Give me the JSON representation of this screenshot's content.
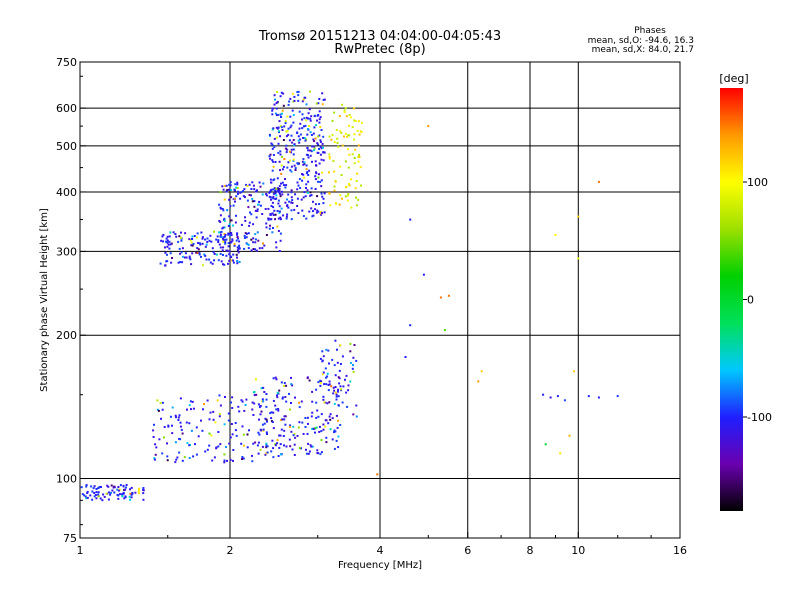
{
  "chart_data": {
    "type": "scatter",
    "title": "Tromsø 20151213 04:04:00-04:05:43",
    "subtitle": "RwPretec (8p)",
    "xlabel": "Frequency [MHz]",
    "ylabel": "Stationary phase Virtual Height [km]",
    "x_scale": "log",
    "y_scale": "log",
    "xlim": [
      1,
      16
    ],
    "ylim": [
      75,
      750
    ],
    "x_ticks": [
      1,
      2,
      4,
      6,
      8,
      10,
      16
    ],
    "x_tick_labels": [
      "1",
      "2",
      "4",
      "6",
      "8",
      "10",
      "16"
    ],
    "y_ticks": [
      75,
      100,
      200,
      300,
      400,
      500,
      600,
      750
    ],
    "y_tick_labels": [
      "75",
      "100",
      "200",
      "300",
      "400",
      "500",
      "600",
      "750"
    ],
    "grid": true,
    "legend": {
      "heading": "Phases",
      "lines": [
        "mean, sd,O: -94.6, 16.3",
        "mean, sd,X:  84.0, 21.7"
      ],
      "placement": "top-right"
    },
    "colorbar": {
      "label": "[deg]",
      "range": [
        -180,
        180
      ],
      "ticks": [
        100,
        0,
        -100
      ],
      "tick_labels": [
        "100",
        "0",
        "-100"
      ],
      "colormap": [
        "#000000",
        "#6a00b0",
        "#1f1fff",
        "#00c8ff",
        "#00e05a",
        "#00d000",
        "#9ee000",
        "#ffff00",
        "#ff9900",
        "#ff0000"
      ]
    },
    "series": [
      {
        "name": "O",
        "description_color": "#1f1fff",
        "clusters": [
          {
            "x_range": [
              1.0,
              1.35
            ],
            "y_range": [
              90,
              97
            ],
            "count": 90
          },
          {
            "x_range": [
              1.4,
              2.6
            ],
            "y_range": [
              108,
              150
            ],
            "count": 180
          },
          {
            "x_range": [
              2.2,
              3.35
            ],
            "y_range": [
              112,
              165
            ],
            "count": 170
          },
          {
            "x_range": [
              3.0,
              3.6
            ],
            "y_range": [
              130,
              195
            ],
            "count": 70
          },
          {
            "x_range": [
              1.45,
              2.1
            ],
            "y_range": [
              280,
              330
            ],
            "count": 160
          },
          {
            "x_range": [
              1.9,
              2.55
            ],
            "y_range": [
              300,
              420
            ],
            "count": 190
          },
          {
            "x_range": [
              2.4,
              3.1
            ],
            "y_range": [
              350,
              650
            ],
            "count": 360
          }
        ]
      },
      {
        "name": "X",
        "description_color": "#ffff00",
        "clusters": [
          {
            "x_range": [
              3.15,
              3.7
            ],
            "y_range": [
              370,
              610
            ],
            "count": 90
          }
        ]
      }
    ],
    "isolated_points": [
      {
        "x": 4.6,
        "y": 350,
        "phase": -100
      },
      {
        "x": 5.0,
        "y": 550,
        "phase": 140
      },
      {
        "x": 11.0,
        "y": 420,
        "phase": 150
      },
      {
        "x": 10.0,
        "y": 355,
        "phase": 120
      },
      {
        "x": 9.0,
        "y": 325,
        "phase": 100
      },
      {
        "x": 5.3,
        "y": 240,
        "phase": 150
      },
      {
        "x": 5.5,
        "y": 242,
        "phase": 150
      },
      {
        "x": 4.9,
        "y": 268,
        "phase": -100
      },
      {
        "x": 4.6,
        "y": 210,
        "phase": -100
      },
      {
        "x": 5.4,
        "y": 205,
        "phase": 40
      },
      {
        "x": 6.4,
        "y": 168,
        "phase": 120
      },
      {
        "x": 6.3,
        "y": 160,
        "phase": 140
      },
      {
        "x": 8.5,
        "y": 150,
        "phase": -100
      },
      {
        "x": 8.8,
        "y": 148,
        "phase": -110
      },
      {
        "x": 9.1,
        "y": 149,
        "phase": -100
      },
      {
        "x": 9.4,
        "y": 146,
        "phase": -90
      },
      {
        "x": 9.8,
        "y": 168,
        "phase": 120
      },
      {
        "x": 10.5,
        "y": 149,
        "phase": -100
      },
      {
        "x": 11.0,
        "y": 148,
        "phase": -100
      },
      {
        "x": 12.0,
        "y": 149,
        "phase": -95
      },
      {
        "x": 8.6,
        "y": 118,
        "phase": 0
      },
      {
        "x": 9.2,
        "y": 113,
        "phase": 110
      },
      {
        "x": 9.6,
        "y": 123,
        "phase": 130
      },
      {
        "x": 10.0,
        "y": 290,
        "phase": 90
      },
      {
        "x": 3.95,
        "y": 102,
        "phase": 150
      },
      {
        "x": 4.5,
        "y": 180,
        "phase": -100
      }
    ]
  }
}
